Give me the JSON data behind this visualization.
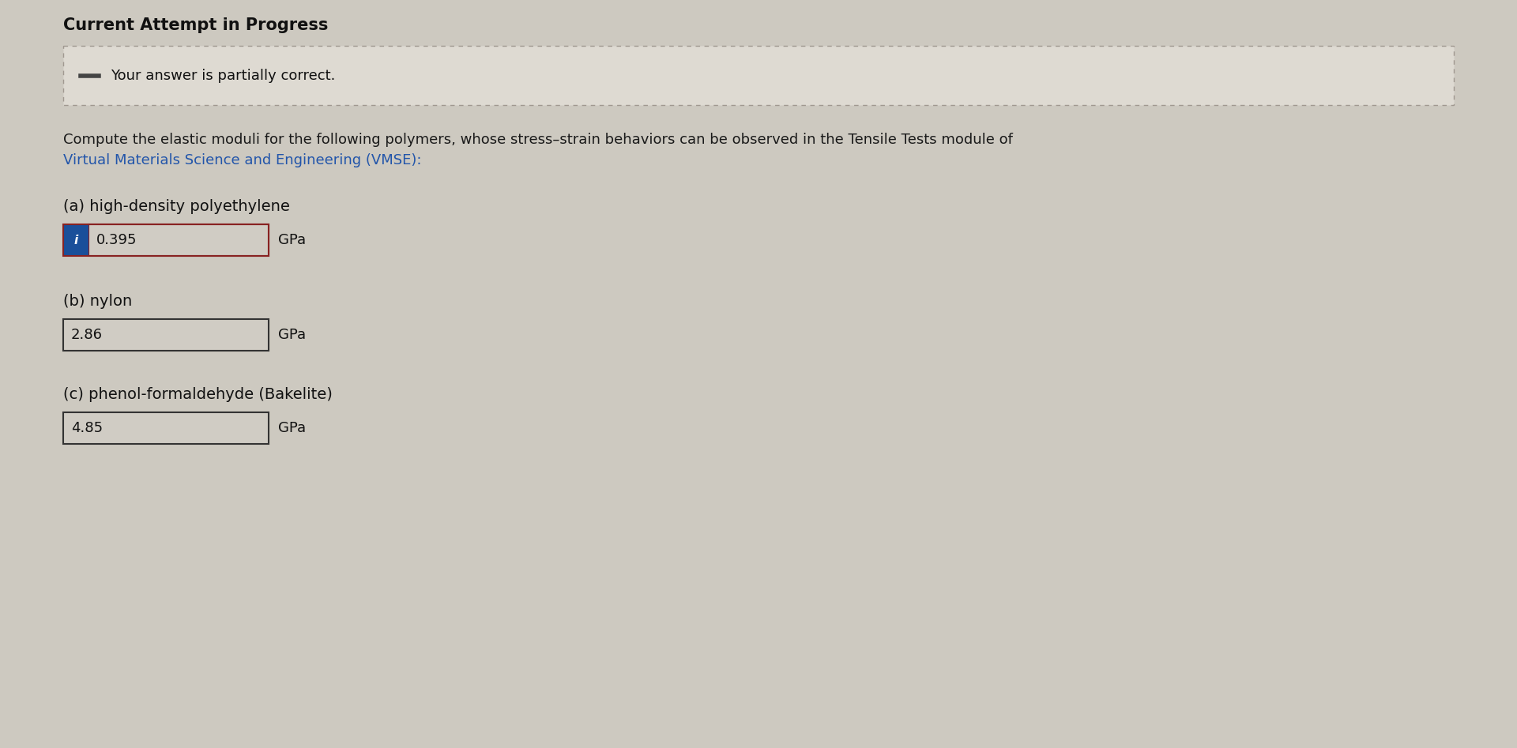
{
  "page_background": "#cdc9c0",
  "title": "Current Attempt in Progress",
  "title_fontsize": 15,
  "notification_text": "Your answer is partially correct.",
  "notification_bg": "#dedad2",
  "notification_border": "#a09890",
  "dash_color": "#444444",
  "question_line1": "Compute the elastic moduli for the following polymers, whose stress–strain behaviors can be observed in the Tensile Tests module of",
  "question_line2": "Virtual Materials Science and Engineering (VMSE):",
  "question_color": "#1a1a1a",
  "link_color": "#2255aa",
  "part_a_label": "(a) high-density polyethylene",
  "part_b_label": "(b) nylon",
  "part_c_label": "(c) phenol-formaldehyde (Bakelite)",
  "part_a_value": "0.395",
  "part_b_value": "2.86",
  "part_c_value": "4.85",
  "unit": "GPa",
  "input_box_bg": "#d0ccc4",
  "input_box_border_a": "#882222",
  "input_box_border_bc": "#333333",
  "info_icon_bg": "#1a4f9a",
  "info_icon_color": "#ffffff",
  "label_fontsize": 14,
  "value_fontsize": 13,
  "unit_fontsize": 13,
  "notif_fontsize": 13
}
